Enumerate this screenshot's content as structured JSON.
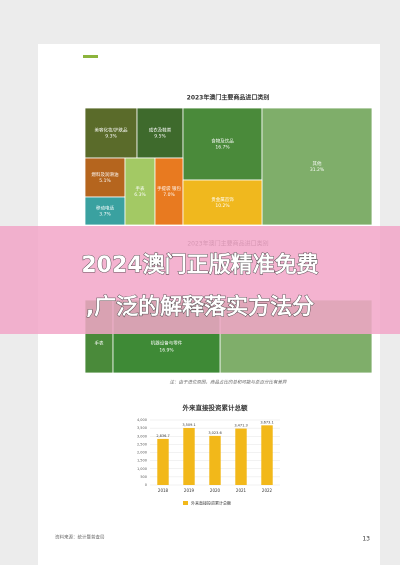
{
  "header": {
    "title": "2023年澳门主要商品进口类别"
  },
  "treemap": {
    "cells": [
      {
        "label": "美容化妆/护肤品",
        "share": "9.3%"
      },
      {
        "label": "成衣及鞋类",
        "share": "9.5%"
      },
      {
        "label": "食物及饮品",
        "share": "16.7%"
      },
      {
        "label": "其他",
        "share": "31.2%"
      },
      {
        "label": "燃料及润滑油",
        "share": "5.1%"
      },
      {
        "label": "移动电话",
        "share": "3.7%"
      },
      {
        "label": "手表",
        "share": "6.3%"
      },
      {
        "label": "手提袋 银包",
        "share": "7.0%"
      },
      {
        "label": "贵金属首饰",
        "share": "10.2%"
      }
    ]
  },
  "banner": {
    "lines": [
      "2024澳门正版精准免费",
      ",广泛的解释落实方法分"
    ]
  },
  "treemap2": {
    "title": "2023年澳门主要商品进口类别",
    "cells": [
      {
        "label": "手表",
        "share": ""
      },
      {
        "label": "机器设备与零件",
        "share": "16.9%"
      }
    ]
  },
  "note": "注：由于进位原因，商品占比的总和可能与总百分比有差异",
  "bar_chart": {
    "type": "bar",
    "title": "外来直接投资累计总额",
    "categories": [
      "2018",
      "2019",
      "2020",
      "2021",
      "2022"
    ],
    "values": [
      2836.7,
      3509.1,
      3023.6,
      3471.3,
      3673.1
    ],
    "value_labels": [
      "2,836.7",
      "3,509.1",
      "3,023.6",
      "3,471.3",
      "3,673.1"
    ],
    "color": "#f2b81a",
    "ylim": [
      0,
      4000
    ],
    "yticks": [
      0,
      500,
      {
        "value": 1000,
        "label": "1,000"
      },
      {
        "value": 1500,
        "label": "1,500"
      },
      {
        "value": 2000,
        "label": "2,000"
      },
      {
        "value": 2500,
        "label": "2,500"
      },
      {
        "value": 3000,
        "label": "3,000"
      },
      {
        "value": 3500,
        "label": "3,500"
      },
      {
        "value": 4000,
        "label": "4,000"
      }
    ],
    "legend": "外来直接投资累计总额",
    "grid": true
  },
  "source": "资料来源：统计暨普查局",
  "page_number": "13"
}
